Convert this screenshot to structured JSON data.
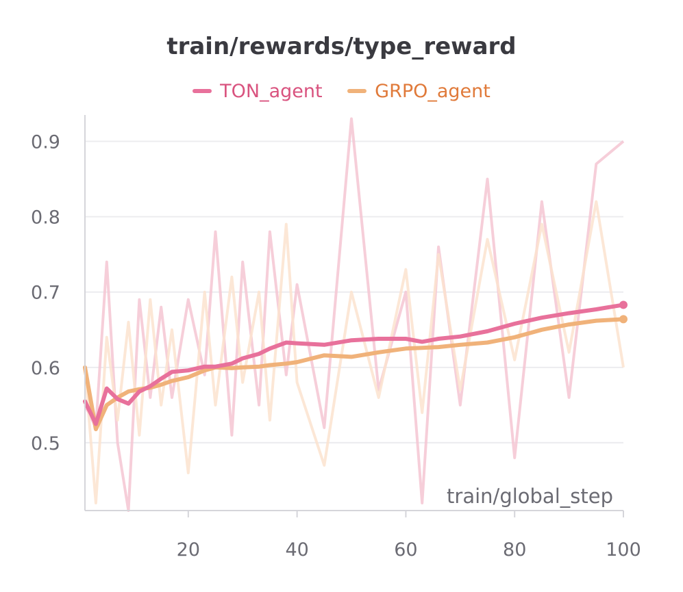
{
  "chart_data": {
    "type": "line",
    "title": "train/rewards/type_reward",
    "xlabel": "train/global_step",
    "ylabel": "",
    "xlim": [
      1,
      100
    ],
    "ylim": [
      0.41,
      0.935
    ],
    "x_ticks": [
      20,
      40,
      60,
      80,
      100
    ],
    "y_ticks": [
      0.5,
      0.6,
      0.7,
      0.8,
      0.9
    ],
    "grid": true,
    "legend_position": "top-center",
    "series": [
      {
        "name": "TON_agent",
        "color": "#e8719b",
        "raw_color": "#f5c6d2",
        "x": [
          1,
          3,
          5,
          7,
          9,
          11,
          13,
          15,
          17,
          20,
          23,
          25,
          28,
          30,
          33,
          35,
          38,
          40,
          45,
          50,
          55,
          60,
          63,
          66,
          70,
          75,
          80,
          85,
          90,
          95,
          100
        ],
        "smoothed": [
          0.555,
          0.525,
          0.572,
          0.558,
          0.552,
          0.568,
          0.575,
          0.585,
          0.594,
          0.596,
          0.601,
          0.601,
          0.605,
          0.612,
          0.618,
          0.625,
          0.633,
          0.632,
          0.63,
          0.636,
          0.638,
          0.638,
          0.634,
          0.638,
          0.641,
          0.648,
          0.658,
          0.666,
          0.672,
          0.677,
          0.683
        ],
        "raw": [
          0.55,
          0.52,
          0.74,
          0.5,
          0.41,
          0.69,
          0.56,
          0.68,
          0.56,
          0.69,
          0.59,
          0.78,
          0.51,
          0.74,
          0.55,
          0.78,
          0.59,
          0.71,
          0.52,
          0.93,
          0.57,
          0.7,
          0.42,
          0.76,
          0.55,
          0.85,
          0.48,
          0.82,
          0.56,
          0.87,
          0.9
        ]
      },
      {
        "name": "GRPO_agent",
        "color": "#f0b27a",
        "raw_color": "#fbe3cf",
        "x": [
          1,
          3,
          5,
          7,
          9,
          11,
          13,
          15,
          17,
          20,
          23,
          25,
          28,
          30,
          33,
          35,
          38,
          40,
          45,
          50,
          55,
          60,
          63,
          66,
          70,
          75,
          80,
          85,
          90,
          95,
          100
        ],
        "smoothed": [
          0.6,
          0.518,
          0.55,
          0.56,
          0.568,
          0.571,
          0.573,
          0.577,
          0.582,
          0.587,
          0.596,
          0.6,
          0.599,
          0.6,
          0.601,
          0.603,
          0.605,
          0.607,
          0.616,
          0.614,
          0.62,
          0.625,
          0.626,
          0.627,
          0.63,
          0.633,
          0.64,
          0.65,
          0.657,
          0.662,
          0.664
        ],
        "raw": [
          0.6,
          0.42,
          0.64,
          0.53,
          0.66,
          0.51,
          0.69,
          0.55,
          0.65,
          0.46,
          0.7,
          0.55,
          0.72,
          0.58,
          0.7,
          0.53,
          0.79,
          0.58,
          0.47,
          0.7,
          0.56,
          0.73,
          0.54,
          0.75,
          0.57,
          0.77,
          0.61,
          0.79,
          0.62,
          0.82,
          0.6
        ]
      }
    ]
  }
}
